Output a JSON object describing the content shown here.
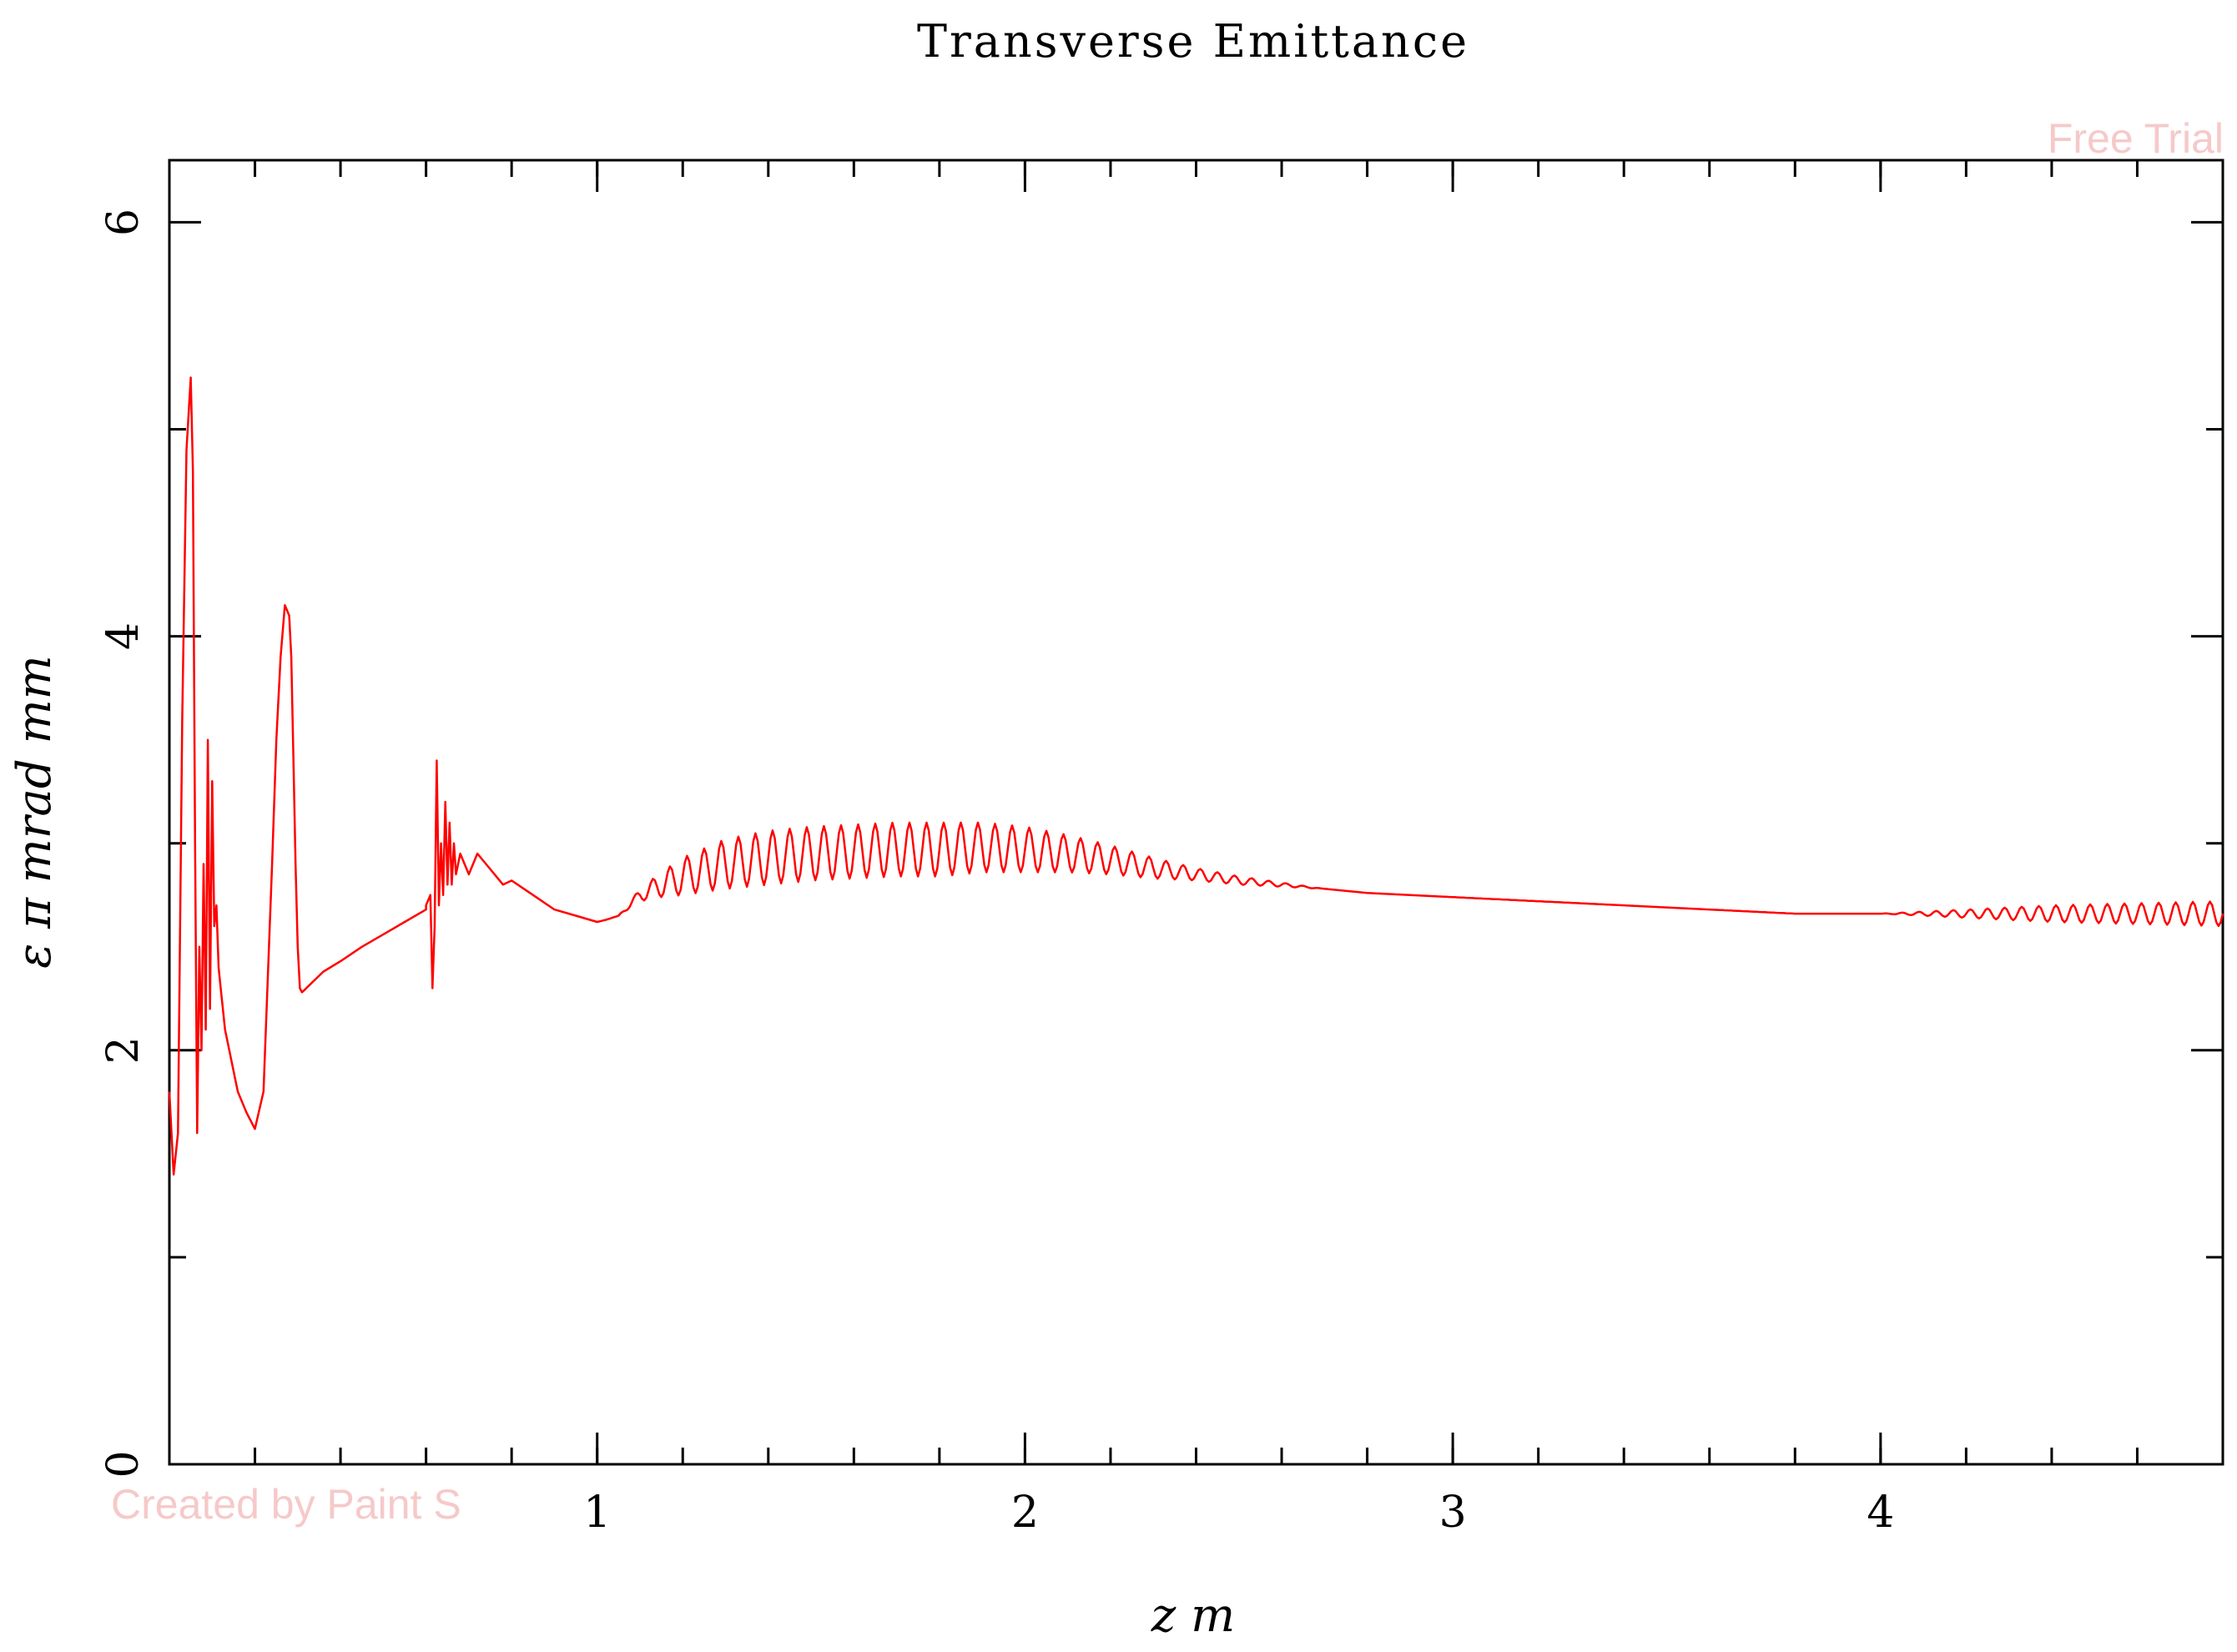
{
  "watermarks": {
    "top_right": "Free Trial",
    "bottom_left": "Created by Paint S"
  },
  "chart_data": {
    "type": "line",
    "title": "Transverse Emittance",
    "xlabel": "z m",
    "ylabel": "ε π mrad mm",
    "xlim": [
      0.0,
      4.8
    ],
    "ylim": [
      0,
      6.3
    ],
    "x_ticks": [
      1,
      2,
      3,
      4
    ],
    "y_ticks": [
      0,
      2,
      4,
      6
    ],
    "x_minor_step": 0.2,
    "y_minor_step": 1,
    "grid": false,
    "line_color": "#ff0000",
    "series": [
      {
        "x": [
          0.0,
          0.01,
          0.02,
          0.03,
          0.04,
          0.05,
          0.055,
          0.06,
          0.065,
          0.07,
          0.075,
          0.08,
          0.085,
          0.09,
          0.095,
          0.1,
          0.105,
          0.11,
          0.115,
          0.12,
          0.13,
          0.14,
          0.15,
          0.16,
          0.18,
          0.2,
          0.22,
          0.24,
          0.25,
          0.26,
          0.27,
          0.28,
          0.285,
          0.29,
          0.295,
          0.3,
          0.305,
          0.31,
          0.315,
          0.32,
          0.33,
          0.34,
          0.35,
          0.36,
          0.4,
          0.45,
          0.5,
          0.55,
          0.6,
          0.6,
          0.61,
          0.615,
          0.62,
          0.625,
          0.63,
          0.635,
          0.64,
          0.645,
          0.65,
          0.655,
          0.66,
          0.665,
          0.67,
          0.68,
          0.7,
          0.72,
          0.74,
          0.76,
          0.78,
          0.8,
          0.85,
          0.9,
          0.95,
          1.0,
          1.02,
          1.05,
          1.1,
          1.15,
          1.2,
          1.3,
          1.4,
          1.5,
          1.6,
          1.7,
          1.8,
          1.9,
          2.0,
          2.1,
          2.2,
          2.3,
          2.4,
          2.5,
          2.6,
          2.7,
          2.8,
          2.9,
          3.0,
          3.2,
          3.4,
          3.6,
          3.8,
          4.0,
          4.2,
          4.4,
          4.6,
          4.8
        ],
        "values": [
          1.8,
          1.4,
          1.6,
          3.6,
          4.9,
          5.25,
          4.8,
          3.0,
          1.6,
          2.5,
          2.0,
          2.9,
          2.1,
          3.5,
          2.2,
          3.3,
          2.6,
          2.7,
          2.4,
          2.3,
          2.1,
          2.0,
          1.9,
          1.8,
          1.7,
          1.62,
          1.8,
          2.9,
          3.5,
          3.9,
          4.15,
          4.1,
          3.9,
          3.4,
          2.9,
          2.5,
          2.3,
          2.28,
          2.29,
          2.3,
          2.32,
          2.34,
          2.36,
          2.38,
          2.43,
          2.5,
          2.56,
          2.62,
          2.68,
          2.7,
          2.75,
          2.3,
          2.6,
          3.4,
          2.7,
          3.0,
          2.75,
          3.2,
          2.8,
          3.1,
          2.8,
          3.0,
          2.85,
          2.95,
          2.85,
          2.95,
          2.9,
          2.85,
          2.8,
          2.82,
          2.75,
          2.68,
          2.65,
          2.62,
          2.63,
          2.65,
          2.75,
          2.8,
          2.84,
          2.9,
          2.93,
          2.95,
          2.96,
          2.97,
          2.97,
          2.98,
          2.97,
          2.95,
          2.92,
          2.88,
          2.85,
          2.82,
          2.8,
          2.78,
          2.76,
          2.75,
          2.74,
          2.72,
          2.7,
          2.68,
          2.66,
          2.66,
          2.66,
          2.66,
          2.66,
          2.66
        ],
        "oscillation_amplitude": [
          0.0,
          0.0,
          0.0,
          0.0,
          0.0,
          0.0,
          0.0,
          0.0,
          0.0,
          0.0,
          0.0,
          0.0,
          0.0,
          0.0,
          0.0,
          0.0,
          0.0,
          0.0,
          0.0,
          0.0,
          0.0,
          0.0,
          0.0,
          0.0,
          0.0,
          0.0,
          0.0,
          0.0,
          0.0,
          0.0,
          0.0,
          0.0,
          0.0,
          0.0,
          0.0,
          0.0,
          0.0,
          0.0,
          0.0,
          0.0,
          0.0,
          0.0,
          0.0,
          0.0,
          0.0,
          0.0,
          0.0,
          0.0,
          0.0,
          0.0,
          0.0,
          0.0,
          0.0,
          0.0,
          0.0,
          0.0,
          0.0,
          0.0,
          0.0,
          0.0,
          0.0,
          0.0,
          0.0,
          0.0,
          0.0,
          0.0,
          0.0,
          0.0,
          0.0,
          0.0,
          0.0,
          0.0,
          0.0,
          0.0,
          0.0,
          0.0,
          0.03,
          0.06,
          0.09,
          0.12,
          0.13,
          0.13,
          0.13,
          0.13,
          0.13,
          0.12,
          0.11,
          0.09,
          0.07,
          0.05,
          0.03,
          0.02,
          0.01,
          0.0,
          0.0,
          0.0,
          0.0,
          0.0,
          0.0,
          0.0,
          0.0,
          0.0,
          0.02,
          0.04,
          0.05,
          0.06
        ],
        "oscillation_period": 0.04
      }
    ]
  }
}
